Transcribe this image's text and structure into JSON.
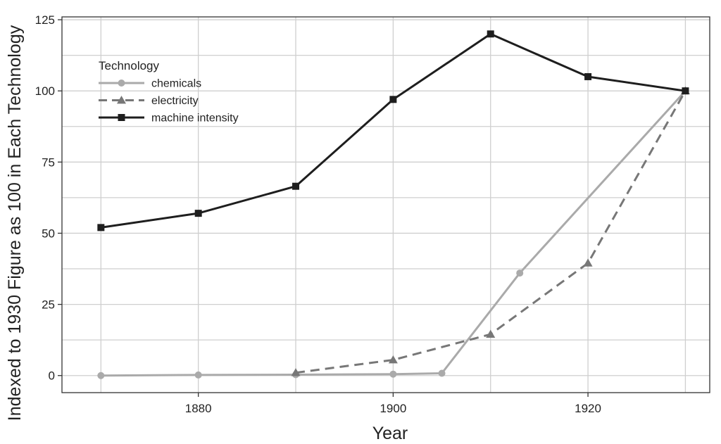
{
  "chart_data": {
    "type": "line",
    "xlabel": "Year",
    "ylabel": "Indexed to 1930 Figure as 100 in Each Technology",
    "xlim": [
      1866,
      1932.5
    ],
    "ylim": [
      -6,
      126
    ],
    "x_ticks": [
      1880,
      1900,
      1920
    ],
    "y_ticks": [
      0,
      25,
      50,
      75,
      100,
      125
    ],
    "x_gridlines": [
      1870,
      1880,
      1890,
      1900,
      1910,
      1920,
      1930
    ],
    "y_gridlines": [
      0,
      12.5,
      25,
      37.5,
      50,
      62.5,
      75,
      87.5,
      100,
      112.5,
      125
    ],
    "grid": true,
    "legend": {
      "title": "Technology",
      "placement": "top-left"
    },
    "series": [
      {
        "name": "chemicals",
        "color": "#aaaaaa",
        "marker": "circle",
        "dash": "solid",
        "points": [
          [
            1870,
            0
          ],
          [
            1880,
            0.2
          ],
          [
            1890,
            0.3
          ],
          [
            1900,
            0.5
          ],
          [
            1905,
            0.8
          ],
          [
            1913,
            36
          ],
          [
            1930,
            100
          ]
        ]
      },
      {
        "name": "electricity",
        "color": "#777777",
        "marker": "triangle",
        "dash": "dashed",
        "points": [
          [
            1890,
            1
          ],
          [
            1900,
            5.5
          ],
          [
            1910,
            14.5
          ],
          [
            1920,
            39.5
          ],
          [
            1930,
            100
          ]
        ]
      },
      {
        "name": "machine intensity",
        "color": "#1e1e1e",
        "marker": "square",
        "dash": "solid",
        "points": [
          [
            1870,
            52
          ],
          [
            1880,
            57
          ],
          [
            1890,
            66.5
          ],
          [
            1900,
            97
          ],
          [
            1910,
            120
          ],
          [
            1920,
            105
          ],
          [
            1930,
            100
          ]
        ]
      }
    ]
  }
}
